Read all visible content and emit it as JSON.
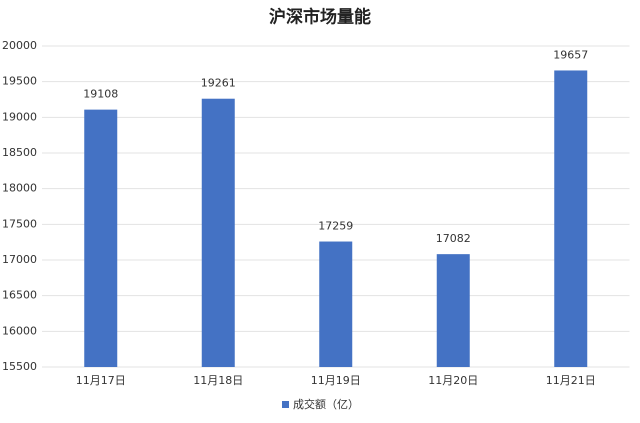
{
  "chart_data": {
    "type": "bar",
    "title": "沪深市场量能",
    "categories": [
      "11月17日",
      "11月18日",
      "11月19日",
      "11月20日",
      "11月21日"
    ],
    "series": [
      {
        "name": "成交额（亿）",
        "color": "#4472c4",
        "values": [
          19108,
          19261,
          17259,
          17082,
          19657
        ]
      }
    ],
    "ylim": [
      15500,
      20000
    ],
    "yticks": [
      15500,
      16000,
      16500,
      17000,
      17500,
      18000,
      18500,
      19000,
      19500,
      20000
    ],
    "grid": true,
    "legend": "bottom"
  }
}
